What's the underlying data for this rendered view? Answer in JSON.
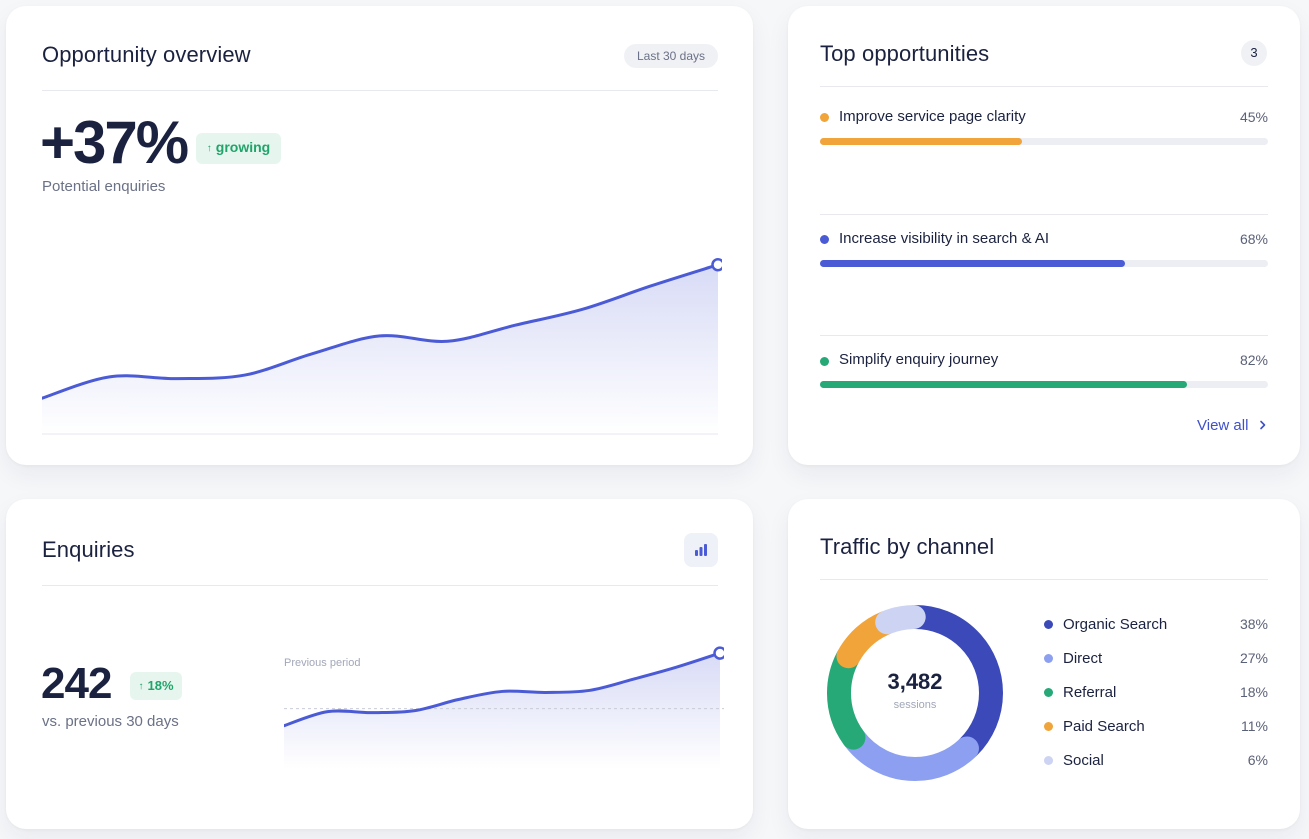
{
  "overview": {
    "title": "Opportunity overview",
    "range": "Last 30 days",
    "value": "+37%",
    "badge": "growing",
    "caption": "Potential enquiries",
    "accent": "#4b5bd5",
    "chart_data": {
      "type": "area",
      "x": [
        0,
        1,
        2,
        3,
        4,
        5,
        6,
        7,
        8,
        9,
        10
      ],
      "series": [
        {
          "values": [
            10,
            22,
            21,
            23,
            35,
            45,
            42,
            51,
            60,
            73,
            85
          ]
        }
      ],
      "ylim": [
        0,
        100
      ],
      "grid": false
    }
  },
  "top": {
    "title": "Top opportunities",
    "count": "3",
    "items": [
      {
        "label": "Improve service page clarity",
        "pct": "45%",
        "value": 45,
        "color": "#f0a43a"
      },
      {
        "label": "Increase visibility in search & AI",
        "pct": "68%",
        "value": 68,
        "color": "#4b5bd5"
      },
      {
        "label": "Simplify enquiry journey",
        "pct": "82%",
        "value": 82,
        "color": "#26a877"
      }
    ],
    "view_all": "View all"
  },
  "enquiries": {
    "title": "Enquiries",
    "icon": "bar-chart-icon",
    "value": "242",
    "badge": "18%",
    "caption": "vs. previous 30 days",
    "baseline_label": "Previous period",
    "chart_data": {
      "type": "area",
      "x": [
        0,
        1,
        2,
        3,
        4,
        5,
        6,
        7,
        8,
        9,
        10
      ],
      "series": [
        {
          "values": [
            28,
            42,
            41,
            43,
            54,
            62,
            61,
            63,
            74,
            86,
            100
          ]
        },
        {
          "values": [
            45,
            45,
            45,
            45,
            45,
            45,
            45,
            45,
            45,
            45,
            45
          ]
        }
      ],
      "ylim": [
        0,
        110
      ],
      "grid": false
    }
  },
  "traffic": {
    "title": "Traffic by channel",
    "total": "3,482",
    "total_label": "sessions",
    "chart_data": {
      "type": "pie",
      "categories": [
        "Organic Search",
        "Direct",
        "Referral",
        "Paid Search",
        "Social"
      ],
      "values": [
        38,
        27,
        18,
        11,
        6
      ]
    },
    "legend": [
      {
        "label": "Organic Search",
        "pct": "38%",
        "color": "#3b4ab8"
      },
      {
        "label": "Direct",
        "pct": "27%",
        "color": "#8c9ff0"
      },
      {
        "label": "Referral",
        "pct": "18%",
        "color": "#26a877"
      },
      {
        "label": "Paid Search",
        "pct": "11%",
        "color": "#f0a43a"
      },
      {
        "label": "Social",
        "pct": "6%",
        "color": "#cdd3f3"
      }
    ]
  }
}
